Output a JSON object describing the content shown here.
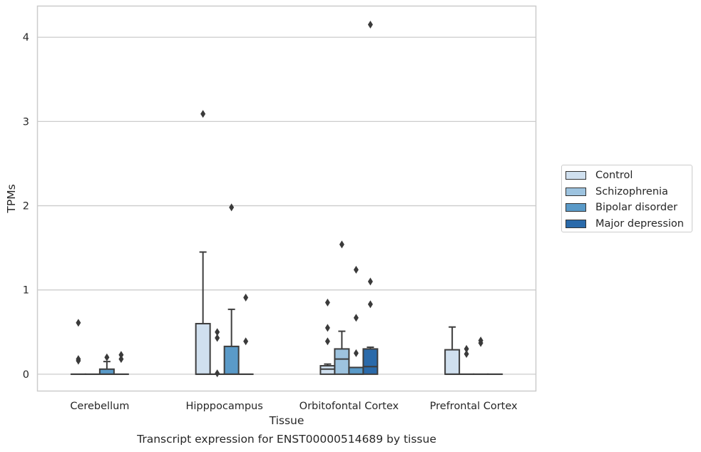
{
  "chart_data": {
    "type": "boxplot",
    "caption": "Transcript expression for ENST00000514689 by tissue",
    "xlabel": "Tissue",
    "ylabel": "TPMs",
    "ylim": [
      -0.2,
      4.37
    ],
    "yticks": [
      0,
      1,
      2,
      3,
      4
    ],
    "grid": "horizontal",
    "legend_position": "right",
    "categories": [
      "Cerebellum",
      "Hipppocampus",
      "Orbitofontal Cortex",
      "Prefrontal Cortex"
    ],
    "series": [
      {
        "name": "Control",
        "color": "#d0e0ef",
        "boxes": [
          {
            "q1": 0,
            "median": 0,
            "q3": 0,
            "whislo": 0,
            "whishi": 0,
            "fliers": [
              0.61,
              0.18,
              0.16
            ]
          },
          {
            "q1": 0,
            "median": 0,
            "q3": 0.6,
            "whislo": 0,
            "whishi": 1.45,
            "fliers": [
              3.09
            ]
          },
          {
            "q1": 0,
            "median": 0.06,
            "q3": 0.1,
            "whislo": 0,
            "whishi": 0.12,
            "fliers": [
              0.85,
              0.55,
              0.39
            ]
          },
          {
            "q1": 0,
            "median": 0,
            "q3": 0.29,
            "whislo": 0,
            "whishi": 0.56,
            "fliers": []
          }
        ]
      },
      {
        "name": "Schizophrenia",
        "color": "#9dc3df",
        "boxes": [
          {
            "q1": 0,
            "median": 0,
            "q3": 0,
            "whislo": 0,
            "whishi": 0,
            "fliers": []
          },
          {
            "q1": 0,
            "median": 0,
            "q3": 0,
            "whislo": 0,
            "whishi": 0,
            "fliers": [
              0.5,
              0.43,
              0.01
            ]
          },
          {
            "q1": 0,
            "median": 0.18,
            "q3": 0.3,
            "whislo": 0,
            "whishi": 0.51,
            "fliers": [
              1.54
            ]
          },
          {
            "q1": 0,
            "median": 0,
            "q3": 0,
            "whislo": 0,
            "whishi": 0,
            "fliers": [
              0.3,
              0.24
            ]
          }
        ]
      },
      {
        "name": "Bipolar disorder",
        "color": "#5a9ac8",
        "boxes": [
          {
            "q1": 0,
            "median": 0,
            "q3": 0.06,
            "whislo": 0,
            "whishi": 0.15,
            "fliers": [
              0.2
            ]
          },
          {
            "q1": 0,
            "median": 0,
            "q3": 0.33,
            "whislo": 0,
            "whishi": 0.77,
            "fliers": [
              1.98
            ]
          },
          {
            "q1": 0,
            "median": 0,
            "q3": 0.08,
            "whislo": 0,
            "whishi": 0.08,
            "fliers": [
              1.24,
              0.67,
              0.25
            ]
          },
          {
            "q1": 0,
            "median": 0,
            "q3": 0,
            "whislo": 0,
            "whishi": 0,
            "fliers": [
              0.4,
              0.37
            ]
          }
        ]
      },
      {
        "name": "Major depression",
        "color": "#2a6aaa",
        "boxes": [
          {
            "q1": 0,
            "median": 0,
            "q3": 0,
            "whislo": 0,
            "whishi": 0,
            "fliers": [
              0.23,
              0.18
            ]
          },
          {
            "q1": 0,
            "median": 0,
            "q3": 0,
            "whislo": 0,
            "whishi": 0,
            "fliers": [
              0.91,
              0.39
            ]
          },
          {
            "q1": 0,
            "median": 0.09,
            "q3": 0.3,
            "whislo": 0,
            "whishi": 0.32,
            "fliers": [
              4.15,
              1.1,
              0.83
            ]
          },
          {
            "q1": 0,
            "median": 0,
            "q3": 0,
            "whislo": 0,
            "whishi": 0,
            "fliers": []
          }
        ]
      }
    ]
  }
}
